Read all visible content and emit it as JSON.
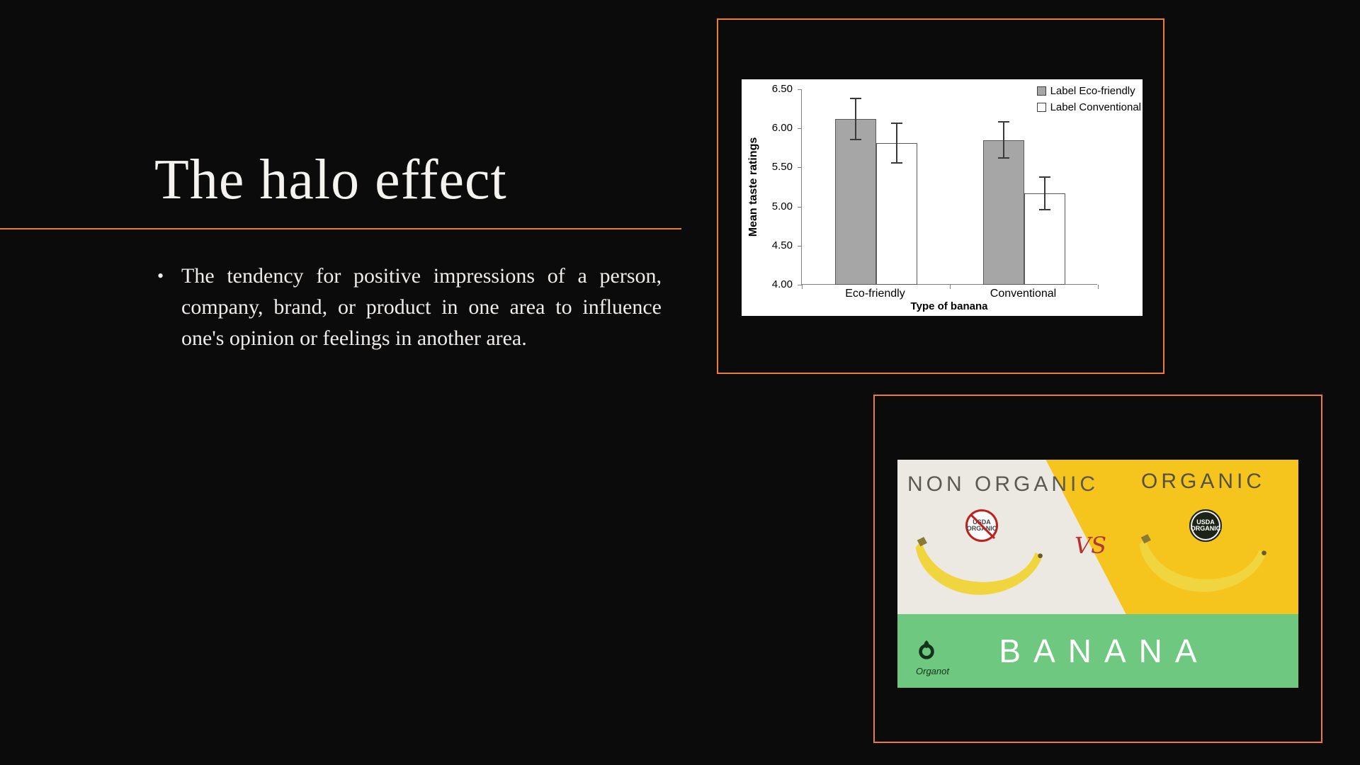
{
  "slide": {
    "title": "The halo effect",
    "bullet": "The tendency for positive impressions of a person, company, brand, or product in one area to influence one's opinion or feelings in another area.",
    "accent_color": "#ED7D31"
  },
  "chart_data": {
    "type": "bar",
    "title": "",
    "categories": [
      "Eco-friendly",
      "Conventional"
    ],
    "series": [
      {
        "name": "Label Eco-friendly",
        "color": "#A6A6A6",
        "values": [
          6.12,
          5.85
        ],
        "errors": [
          0.27,
          0.24
        ]
      },
      {
        "name": "Label Conventional",
        "color": "#FFFFFF",
        "values": [
          5.81,
          5.17
        ],
        "errors": [
          0.26,
          0.22
        ]
      }
    ],
    "xlabel": "Type of banana",
    "ylabel": "Mean taste ratings",
    "ylim": [
      4.0,
      6.5
    ],
    "ytick_step": 0.5,
    "grid": false,
    "legend_position": "top-right"
  },
  "banana_graphic": {
    "left_label": "NON ORGANIC",
    "right_label": "ORGANIC",
    "vs_label": "VS",
    "bottom_label": "BANANA",
    "brand": "Organot",
    "badge_line1": "USDA",
    "badge_line2": "ORGANIC",
    "colors": {
      "yellow": "#F5C51E",
      "light": "#ECE9E3",
      "green": "#6FC87F"
    }
  }
}
